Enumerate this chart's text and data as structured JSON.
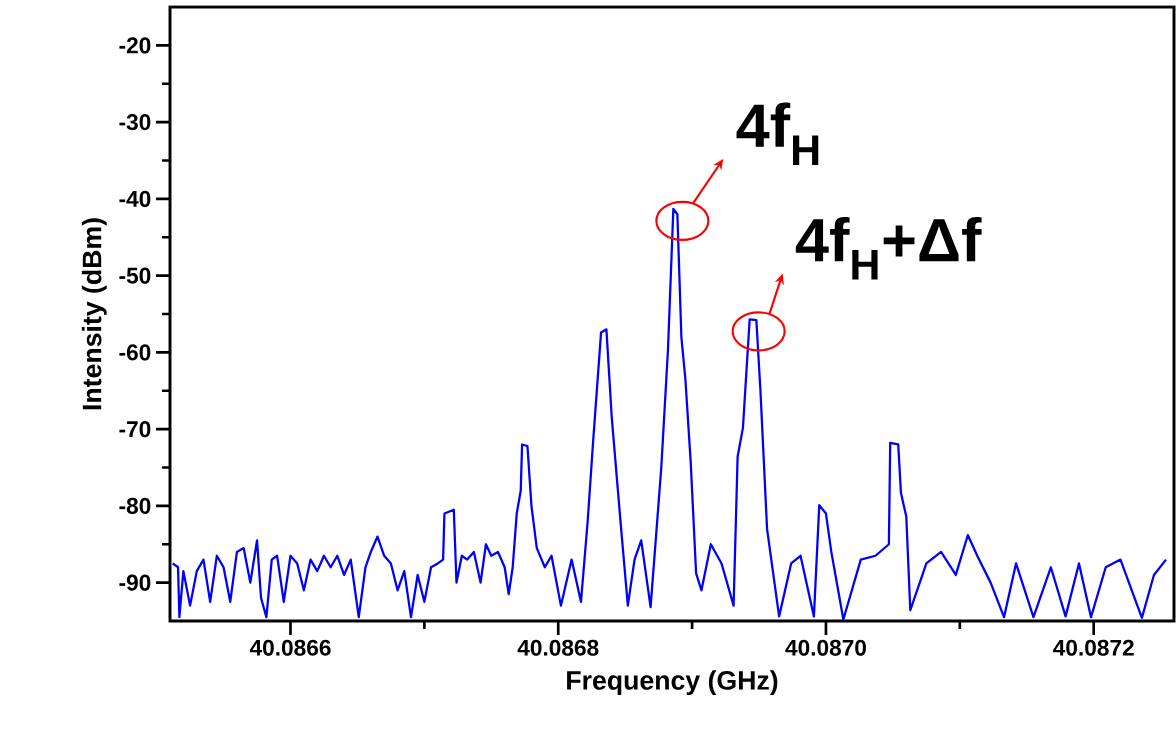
{
  "chart_data": {
    "type": "line",
    "xlabel": "Frequency (GHz)",
    "ylabel": "Intensity (dBm)",
    "xlim": [
      40.08651,
      40.08726
    ],
    "ylim": [
      -95,
      -15
    ],
    "xticks": [
      40.0866,
      40.0868,
      {
        "value": 40.087,
        "label": "40.0870"
      },
      40.0872
    ],
    "yticks": [
      -20,
      -30,
      -40,
      -50,
      -60,
      -70,
      -80,
      -90
    ],
    "annotations": [
      {
        "text": "4f$_{H}$",
        "x": 40.086886,
        "y": -41.3
      },
      {
        "text": "4f$_{H}$+Δf",
        "x": 40.086943,
        "y": -55.7
      }
    ],
    "series": [
      {
        "color": "#0000ff",
        "x": [
          40.086512,
          40.086516,
          40.086517,
          40.08652,
          40.086525,
          40.08653,
          40.086535,
          40.08654,
          40.086545,
          40.08655,
          40.086555,
          40.08656,
          40.086565,
          40.08657,
          40.086575,
          40.086578,
          40.086582,
          40.086586,
          40.08659,
          40.086595,
          40.0866,
          40.086605,
          40.08661,
          40.086615,
          40.08662,
          40.086625,
          40.08663,
          40.086635,
          40.08664,
          40.086645,
          40.086651,
          40.086656,
          40.08666,
          40.086665,
          40.08667,
          40.086675,
          40.08668,
          40.086685,
          40.08669,
          40.086695,
          40.0867,
          40.086705,
          40.08671,
          40.086714,
          40.086715,
          40.086722,
          40.086724,
          40.086728,
          40.086732,
          40.086737,
          40.086742,
          40.086746,
          40.08675,
          40.086755,
          40.08676,
          40.086763,
          40.086766,
          40.086769,
          40.086772,
          40.086773,
          40.086777,
          40.08678,
          40.086784,
          40.08679,
          40.086795,
          40.086802,
          40.08681,
          40.086817,
          40.086822,
          40.086826,
          40.086832,
          40.086836,
          40.08684,
          40.086847,
          40.086852,
          40.086857,
          40.086862,
          40.086869,
          40.086877,
          40.086882,
          40.086886,
          40.086889,
          40.086892,
          40.086895,
          40.086899,
          40.086903,
          40.086907,
          40.086914,
          40.086922,
          40.086931,
          40.086934,
          40.086938,
          40.086943,
          40.086948,
          40.086951,
          40.086956,
          40.086965,
          40.086974,
          40.086981,
          40.086991,
          40.086995,
          40.087,
          40.087004,
          40.087013,
          40.087026,
          40.087037,
          40.087047,
          40.087048,
          40.087054,
          40.087056,
          40.08706,
          40.087063,
          40.087075,
          40.087086,
          40.087097,
          40.087106,
          40.087113,
          40.087123,
          40.087133,
          40.087142,
          40.087155,
          40.087168,
          40.087179,
          40.087189,
          40.087198,
          40.087209,
          40.08722,
          40.087236,
          40.087245,
          40.087254
        ],
        "values": [
          -87.5,
          -88,
          -94.5,
          -88.5,
          -93,
          -88.5,
          -87,
          -92.5,
          -86.5,
          -88,
          -92.5,
          -86,
          -85.5,
          -90,
          -84.5,
          -92,
          -94.5,
          -87,
          -86.5,
          -92.5,
          -86.5,
          -87.5,
          -91,
          -87,
          -88.5,
          -86.5,
          -88,
          -86.5,
          -89,
          -87,
          -94.5,
          -88,
          -86,
          -84,
          -86.5,
          -87.5,
          -91,
          -88.5,
          -94.5,
          -89,
          -92.5,
          -88,
          -87.5,
          -87,
          -81,
          -80.5,
          -90,
          -86.5,
          -87,
          -86,
          -90,
          -85,
          -86.5,
          -86,
          -88,
          -91.5,
          -88,
          -81,
          -78,
          -72,
          -72.2,
          -80,
          -85.5,
          -88,
          -86.5,
          -93,
          -87,
          -92.5,
          -82,
          -71.8,
          -57.4,
          -57,
          -68.5,
          -83,
          -93,
          -87,
          -84.5,
          -93.2,
          -75,
          -59.6,
          -41.3,
          -42,
          -58,
          -63.5,
          -74.4,
          -88.8,
          -91,
          -85,
          -87.5,
          -93,
          -73.6,
          -69.8,
          -55.7,
          -55.8,
          -64.8,
          -83,
          -94.4,
          -87.5,
          -86.5,
          -94.4,
          -79.9,
          -81,
          -86,
          -94.8,
          -87,
          -86.5,
          -85,
          -71.8,
          -72,
          -78.3,
          -81.4,
          -93.6,
          -87.5,
          -86,
          -89,
          -83.8,
          -86.5,
          -90,
          -94.5,
          -87.5,
          -94.5,
          -88,
          -94.4,
          -87.5,
          -94.5,
          -88,
          -87,
          -94.6,
          -89,
          -87
        ]
      }
    ]
  }
}
